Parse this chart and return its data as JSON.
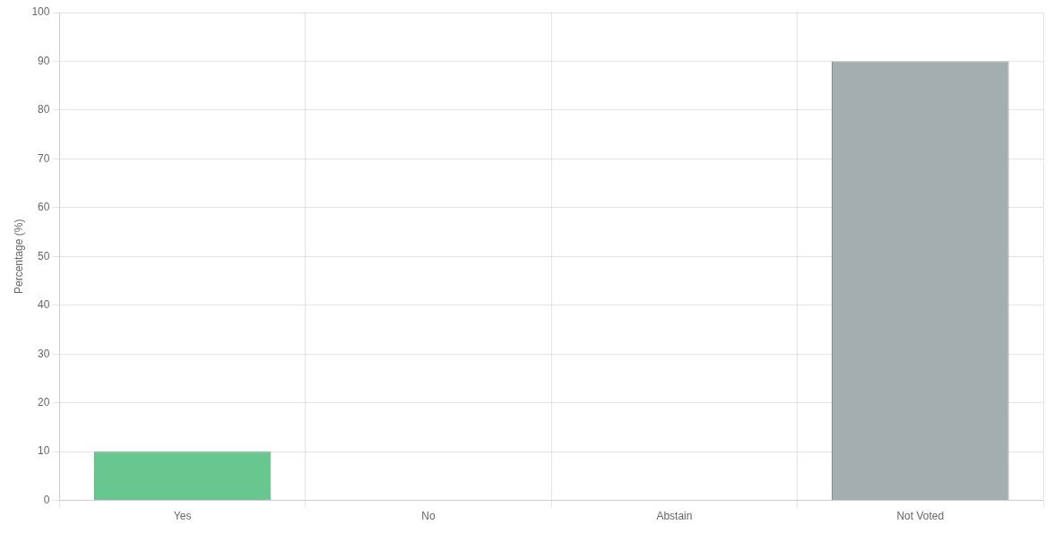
{
  "chart_data": {
    "type": "bar",
    "categories": [
      "Yes",
      "No",
      "Abstain",
      "Not Voted"
    ],
    "values": [
      10,
      0,
      0,
      90
    ],
    "colors": [
      "#68c68f",
      "#a5aeaf",
      "#a5aeaf",
      "#a5aeaf"
    ],
    "ylabel": "Percentage (%)",
    "ylim": [
      0,
      100
    ],
    "yticks": [
      0,
      10,
      20,
      30,
      40,
      50,
      60,
      70,
      80,
      90,
      100
    ],
    "grid": true,
    "legend": false
  }
}
